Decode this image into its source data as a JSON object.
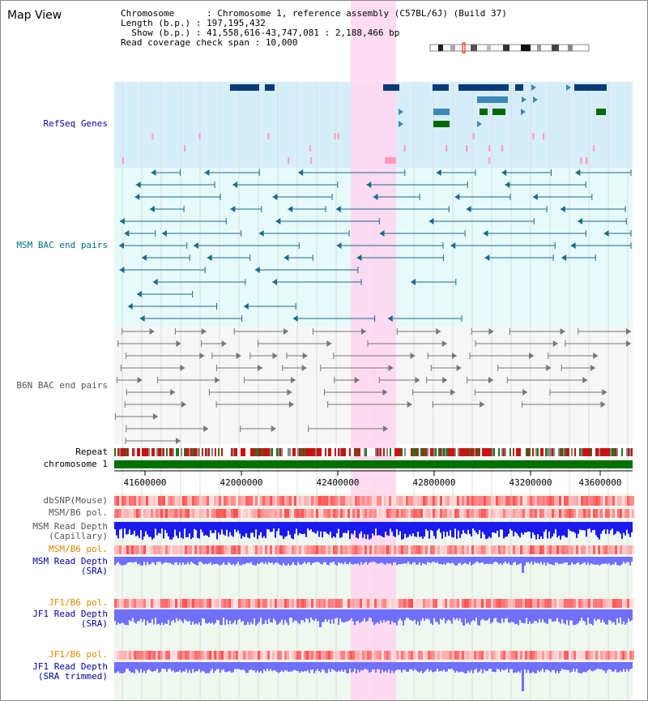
{
  "title": "Map View",
  "info": {
    "chromosome_key": "Chromosome      :",
    "chromosome_val": "Chromosome 1, reference assembly (C57BL/6J) (Build 37)",
    "length_key": "Length (b.p.) :",
    "length_val": "197,195,432",
    "show_key": "  Show (b.p.) :",
    "show_val": "41,558,616-43,747,081 : 2,188,466 bp",
    "coverage_key": "Read coverage check span :",
    "coverage_val": "10,000"
  },
  "tracks": {
    "refseq": "RefSeq Genes",
    "msm_bac": "MSM BAC end pairs",
    "b6n_bac": "B6N BAC end pairs",
    "repeat": "Repeat",
    "chromosome": "chromosome 1",
    "dbsnp": "dbSNP(Mouse)",
    "msm_b6_pol_1": "MSM/B6 pol.",
    "msm_rd_cap_1": "MSM Read Depth",
    "msm_rd_cap_2": "(Capillary)",
    "msm_b6_pol_2": "MSM/B6 pol.",
    "msm_rd_sra_1": "MSM Read Depth",
    "msm_rd_sra_2": "(SRA)",
    "jf1_b6_pol_1": "JF1/B6 pol.",
    "jf1_rd_sra_1": "JF1 Read Depth",
    "jf1_rd_sra_2": "(SRA)",
    "jf1_b6_pol_2": "JF1/B6 pol.",
    "jf1_rd_trim_1": "JF1 Read Depth",
    "jf1_rd_trim_2": "(SRA trimmed)"
  },
  "axis": {
    "ticks": [
      "41600000",
      "42000000",
      "42400000",
      "42800000",
      "43200000",
      "43600000"
    ]
  },
  "colors": {
    "highlight": "#ffd6f0",
    "refseq_bg": "#d6eefa",
    "msm_bg": "#e6fafa",
    "gene_dark": "#0a3a78",
    "gene_mid": "#3a8ab8",
    "gene_green": "#006a00",
    "msm_line": "#1a6a8a",
    "b6n_line": "#777777",
    "chromosome": "#007000",
    "read_depth_dark": "#1a1af0",
    "read_depth_light": "#7070ff"
  }
}
